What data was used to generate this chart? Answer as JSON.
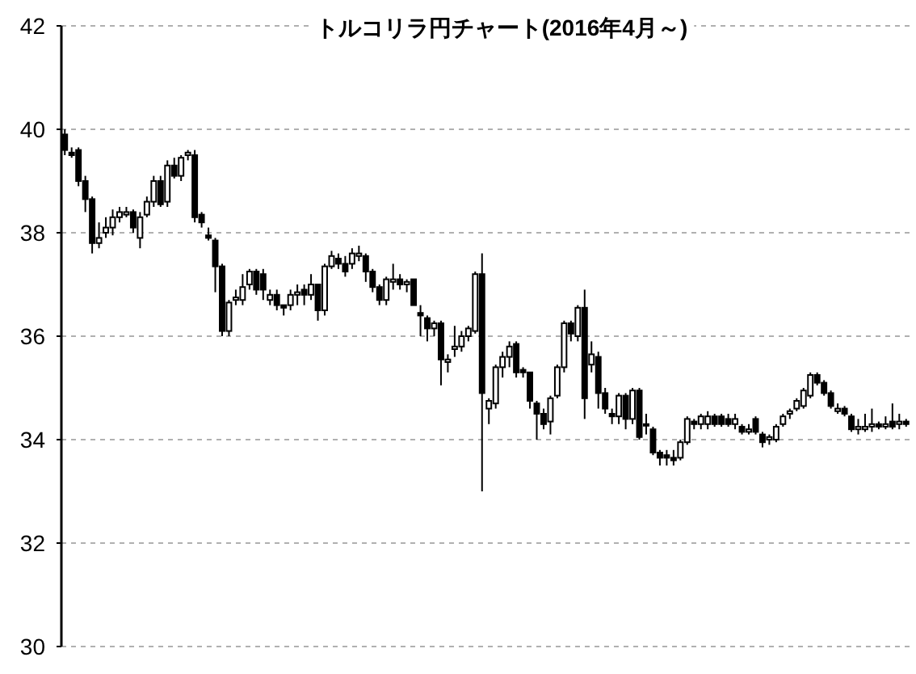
{
  "chart_data": {
    "type": "candlestick",
    "title": "トルコリラ円チャート(2016年4月～)",
    "ylim": [
      30,
      42
    ],
    "yticks": [
      30,
      32,
      34,
      36,
      38,
      40,
      42
    ],
    "grid": "y",
    "categories": [
      null,
      null,
      null,
      null,
      null,
      null,
      null,
      null,
      null,
      null,
      null,
      null,
      null,
      null,
      null,
      null,
      null,
      null,
      null,
      null,
      null,
      null,
      null,
      null,
      null,
      null,
      null,
      null,
      null,
      null,
      null,
      null,
      null,
      null,
      null,
      null,
      null,
      null,
      null,
      null,
      null,
      null,
      null,
      null,
      null,
      null,
      null,
      null,
      null,
      null,
      null,
      null,
      null,
      null,
      null,
      null,
      null,
      null,
      null,
      null,
      null,
      null,
      null,
      null,
      null,
      null,
      null,
      null,
      null,
      null,
      null,
      null,
      null,
      null,
      null,
      null,
      null,
      null,
      null,
      null,
      null,
      null,
      null,
      null,
      null,
      null,
      null,
      null,
      null,
      null,
      null,
      null,
      null,
      null,
      null,
      null,
      null,
      null,
      null,
      null,
      null,
      null,
      null,
      null,
      null,
      null,
      null,
      null,
      null,
      null,
      null,
      null,
      null,
      null,
      null,
      null,
      null,
      null,
      null,
      null,
      null,
      null,
      null,
      null
    ],
    "ohlc": [
      [
        39.9,
        40.0,
        39.5,
        39.6
      ],
      [
        39.55,
        39.65,
        39.45,
        39.5
      ],
      [
        39.6,
        39.65,
        38.9,
        39.0
      ],
      [
        39.0,
        39.1,
        38.4,
        38.65
      ],
      [
        38.65,
        38.7,
        37.6,
        37.8
      ],
      [
        37.8,
        38.2,
        37.7,
        37.9
      ],
      [
        38.0,
        38.3,
        37.9,
        38.1
      ],
      [
        38.1,
        38.45,
        37.95,
        38.3
      ],
      [
        38.3,
        38.5,
        38.2,
        38.4
      ],
      [
        38.35,
        38.5,
        38.3,
        38.4
      ],
      [
        38.4,
        38.45,
        38.0,
        38.1
      ],
      [
        37.9,
        38.4,
        37.7,
        38.3
      ],
      [
        38.35,
        38.7,
        38.3,
        38.6
      ],
      [
        38.6,
        39.1,
        38.5,
        39.0
      ],
      [
        39.0,
        39.1,
        38.5,
        38.55
      ],
      [
        38.6,
        39.4,
        38.5,
        39.3
      ],
      [
        39.3,
        39.45,
        39.05,
        39.1
      ],
      [
        39.1,
        39.5,
        39.0,
        39.45
      ],
      [
        39.5,
        39.6,
        39.4,
        39.55
      ],
      [
        39.5,
        39.6,
        38.2,
        38.3
      ],
      [
        38.35,
        38.4,
        38.1,
        38.2
      ],
      [
        37.95,
        38.1,
        37.85,
        37.9
      ],
      [
        37.85,
        37.9,
        36.85,
        37.35
      ],
      [
        37.35,
        37.4,
        36.0,
        36.1
      ],
      [
        36.1,
        36.7,
        36.0,
        36.65
      ],
      [
        36.7,
        36.9,
        36.6,
        36.75
      ],
      [
        36.7,
        37.2,
        36.6,
        36.95
      ],
      [
        37.0,
        37.3,
        36.9,
        37.25
      ],
      [
        37.25,
        37.3,
        36.8,
        36.9
      ],
      [
        37.2,
        37.3,
        36.7,
        36.9
      ],
      [
        36.7,
        36.9,
        36.6,
        36.8
      ],
      [
        36.8,
        36.9,
        36.5,
        36.6
      ],
      [
        36.6,
        36.6,
        36.4,
        36.55
      ],
      [
        36.6,
        36.9,
        36.5,
        36.8
      ],
      [
        36.8,
        37.0,
        36.6,
        36.85
      ],
      [
        36.9,
        37.0,
        36.6,
        36.8
      ],
      [
        36.8,
        37.2,
        36.7,
        37.0
      ],
      [
        37.0,
        37.0,
        36.3,
        36.5
      ],
      [
        36.5,
        37.4,
        36.4,
        37.35
      ],
      [
        37.35,
        37.65,
        37.3,
        37.55
      ],
      [
        37.5,
        37.6,
        37.3,
        37.4
      ],
      [
        37.4,
        37.55,
        37.15,
        37.25
      ],
      [
        37.4,
        37.7,
        37.3,
        37.6
      ],
      [
        37.55,
        37.75,
        37.45,
        37.6
      ],
      [
        37.55,
        37.6,
        37.05,
        37.25
      ],
      [
        37.25,
        37.3,
        36.85,
        36.95
      ],
      [
        36.95,
        37.0,
        36.6,
        36.7
      ],
      [
        36.7,
        37.15,
        36.6,
        37.1
      ],
      [
        37.05,
        37.4,
        36.9,
        37.1
      ],
      [
        37.1,
        37.2,
        36.9,
        37.0
      ],
      [
        37.0,
        37.1,
        36.85,
        37.05
      ],
      [
        37.1,
        37.1,
        36.6,
        36.6
      ],
      [
        36.45,
        36.6,
        36.0,
        36.4
      ],
      [
        36.35,
        36.4,
        35.9,
        36.15
      ],
      [
        36.15,
        36.3,
        36.0,
        36.25
      ],
      [
        36.25,
        36.3,
        35.05,
        35.55
      ],
      [
        35.5,
        35.65,
        35.3,
        35.55
      ],
      [
        35.75,
        36.2,
        35.6,
        35.8
      ],
      [
        35.8,
        36.1,
        35.7,
        36.0
      ],
      [
        36.0,
        36.2,
        35.9,
        36.15
      ],
      [
        36.1,
        37.25,
        36.05,
        37.2
      ],
      [
        37.2,
        37.6,
        33.0,
        34.9
      ],
      [
        34.6,
        34.8,
        34.3,
        34.75
      ],
      [
        34.7,
        35.45,
        34.6,
        35.4
      ],
      [
        35.4,
        35.7,
        35.2,
        35.6
      ],
      [
        35.6,
        35.9,
        35.4,
        35.8
      ],
      [
        35.85,
        35.9,
        35.2,
        35.3
      ],
      [
        35.35,
        35.4,
        35.2,
        35.3
      ],
      [
        35.3,
        35.3,
        34.6,
        34.75
      ],
      [
        34.7,
        34.75,
        34.0,
        34.5
      ],
      [
        34.5,
        34.6,
        34.2,
        34.3
      ],
      [
        34.35,
        34.85,
        34.1,
        34.8
      ],
      [
        34.85,
        35.45,
        34.8,
        35.4
      ],
      [
        35.4,
        36.3,
        35.3,
        36.25
      ],
      [
        36.25,
        36.3,
        35.9,
        36.05
      ],
      [
        36.0,
        36.6,
        35.9,
        36.55
      ],
      [
        36.55,
        36.9,
        34.4,
        34.8
      ],
      [
        35.45,
        35.9,
        35.3,
        35.65
      ],
      [
        35.6,
        35.7,
        34.6,
        34.9
      ],
      [
        34.9,
        35.0,
        34.5,
        34.6
      ],
      [
        34.5,
        34.6,
        34.3,
        34.45
      ],
      [
        34.45,
        34.9,
        34.3,
        34.85
      ],
      [
        34.85,
        34.9,
        34.2,
        34.4
      ],
      [
        34.4,
        35.0,
        34.3,
        34.95
      ],
      [
        34.95,
        35.0,
        34.0,
        34.05
      ],
      [
        34.3,
        34.5,
        34.1,
        34.3
      ],
      [
        34.2,
        34.25,
        33.7,
        33.75
      ],
      [
        33.75,
        33.8,
        33.5,
        33.65
      ],
      [
        33.7,
        33.8,
        33.5,
        33.65
      ],
      [
        33.65,
        33.8,
        33.5,
        33.6
      ],
      [
        33.65,
        34.0,
        33.6,
        33.95
      ],
      [
        33.95,
        34.45,
        33.9,
        34.4
      ],
      [
        34.35,
        34.4,
        34.2,
        34.3
      ],
      [
        34.3,
        34.5,
        34.2,
        34.45
      ],
      [
        34.3,
        34.55,
        34.2,
        34.45
      ],
      [
        34.45,
        34.5,
        34.25,
        34.3
      ],
      [
        34.45,
        34.5,
        34.25,
        34.3
      ],
      [
        34.4,
        34.5,
        34.25,
        34.3
      ],
      [
        34.3,
        34.5,
        34.2,
        34.4
      ],
      [
        34.25,
        34.3,
        34.1,
        34.15
      ],
      [
        34.15,
        34.3,
        34.1,
        34.2
      ],
      [
        34.4,
        34.45,
        34.1,
        34.15
      ],
      [
        34.1,
        34.15,
        33.85,
        33.95
      ],
      [
        34.0,
        34.1,
        33.9,
        34.05
      ],
      [
        34.0,
        34.3,
        33.95,
        34.25
      ],
      [
        34.3,
        34.5,
        34.25,
        34.45
      ],
      [
        34.5,
        34.6,
        34.4,
        34.55
      ],
      [
        34.6,
        34.8,
        34.55,
        34.75
      ],
      [
        34.65,
        35.0,
        34.6,
        34.95
      ],
      [
        34.85,
        35.3,
        34.8,
        35.25
      ],
      [
        35.25,
        35.3,
        35.05,
        35.1
      ],
      [
        35.1,
        35.15,
        34.85,
        34.9
      ],
      [
        34.9,
        34.95,
        34.6,
        34.65
      ],
      [
        34.55,
        34.7,
        34.5,
        34.6
      ],
      [
        34.6,
        34.65,
        34.45,
        34.5
      ],
      [
        34.45,
        34.5,
        34.15,
        34.2
      ],
      [
        34.2,
        34.4,
        34.1,
        34.25
      ],
      [
        34.2,
        34.5,
        34.15,
        34.25
      ],
      [
        34.25,
        34.6,
        34.15,
        34.3
      ],
      [
        34.3,
        34.35,
        34.2,
        34.25
      ],
      [
        34.25,
        34.45,
        34.2,
        34.3
      ],
      [
        34.35,
        34.7,
        34.2,
        34.25
      ],
      [
        34.3,
        34.5,
        34.2,
        34.35
      ],
      [
        34.35,
        34.4,
        34.25,
        34.3
      ]
    ]
  }
}
